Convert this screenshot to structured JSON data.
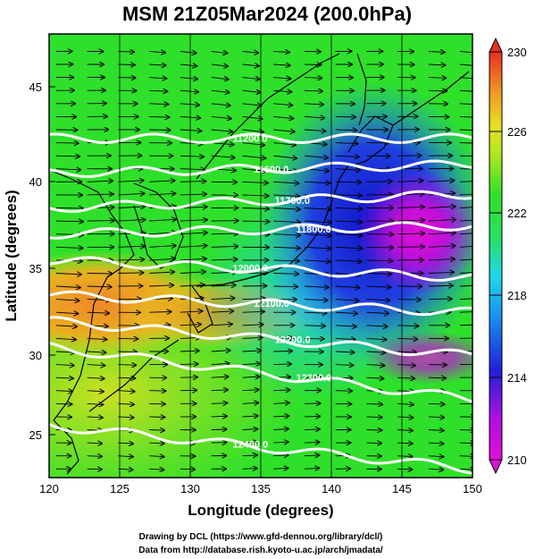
{
  "title": "MSM 21Z05Mar2024 (200.0hPa)",
  "xlabel": "Longitude (degrees)",
  "ylabel": "Latitude  (degrees)",
  "x_ticks": [
    "120",
    "125",
    "130",
    "135",
    "140",
    "145",
    "150"
  ],
  "y_ticks": [
    "25",
    "30",
    "35",
    "40",
    "45"
  ],
  "colorbar_ticks": [
    "230",
    "226",
    "222",
    "218",
    "214",
    "210"
  ],
  "contour_labels": [
    "11200.0",
    "11600.0",
    "11700.0",
    "11800.0",
    "12000.0",
    "12100.0",
    "12200.0",
    "12300.0",
    "12400.0"
  ],
  "credit_line1": "Drawing by DCL (https://www.gfd-dennou.org/library/dcl/)",
  "credit_line2": "Data from http://database.rish.kyoto-u.ac.jp/arch/jmadata/",
  "map_data": {
    "type": "map",
    "projection": "equirectangular",
    "xlim": [
      120,
      150
    ],
    "ylim": [
      22.5,
      48
    ],
    "field": "temperature (K)",
    "colorbar_range": [
      210,
      230
    ],
    "colors": {
      "warm": "#f0902a",
      "mid": "#2ee02a",
      "cool": "#20d8e8",
      "cold": "#1020d0",
      "coldest": "#e010d8",
      "contour": "#ffffff",
      "coast": "#000000"
    },
    "height_contours": [
      {
        "label": "11200.0",
        "lat_west": 42.0,
        "lat_east": 42.0
      },
      {
        "label": "11600.0",
        "lat_west": 40.0,
        "lat_east": 40.5
      },
      {
        "label": "11700.0",
        "lat_west": 38.0,
        "lat_east": 38.8
      },
      {
        "label": "11800.0",
        "lat_west": 36.5,
        "lat_east": 37.0
      },
      {
        "label": "12000.0",
        "lat_west": 35.0,
        "lat_east": 34.0
      },
      {
        "label": "12100.0",
        "lat_west": 33.0,
        "lat_east": 32.0
      },
      {
        "label": "12200.0",
        "lat_west": 31.5,
        "lat_east": 29.5
      },
      {
        "label": "12300.0",
        "lat_west": 30.0,
        "lat_east": 27.0
      },
      {
        "label": "12400.0",
        "lat_west": 25.5,
        "lat_east": 23.0
      }
    ]
  }
}
